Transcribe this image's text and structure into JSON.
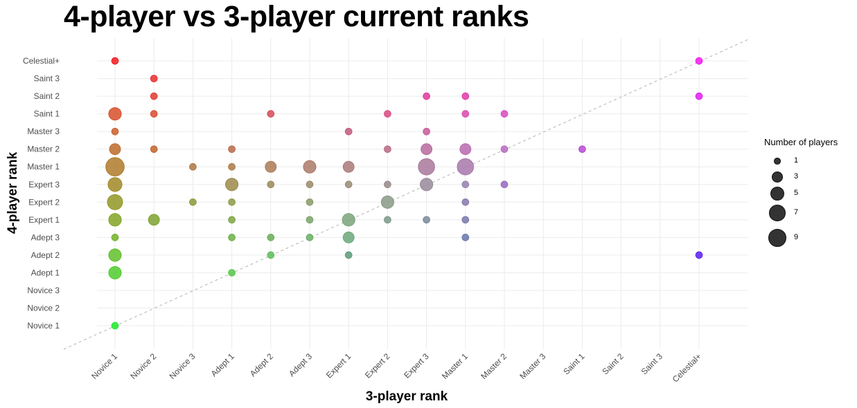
{
  "title": "4-player vs 3-player current ranks",
  "chart_data": {
    "type": "scatter",
    "title": "4-player vs 3-player current ranks",
    "xlabel": "3-player rank",
    "ylabel": "4-player rank",
    "x_categories": [
      "Novice 1",
      "Novice 2",
      "Novice 3",
      "Adept 1",
      "Adept 2",
      "Adept 3",
      "Expert 1",
      "Expert 2",
      "Expert 3",
      "Master 1",
      "Master 2",
      "Master 3",
      "Saint 1",
      "Saint 2",
      "Saint 3",
      "Celestial+"
    ],
    "y_categories": [
      "Novice 1",
      "Novice 2",
      "Novice 3",
      "Adept 1",
      "Adept 2",
      "Adept 3",
      "Expert 1",
      "Expert 2",
      "Expert 3",
      "Master 1",
      "Master 2",
      "Master 3",
      "Saint 1",
      "Saint 2",
      "Saint 3",
      "Celestial+"
    ],
    "size_legend": {
      "title": "Number of players",
      "values": [
        1,
        3,
        5,
        7,
        9
      ]
    },
    "reference_line": "y = x (dashed diagonal)",
    "grid": true,
    "legend_position": "right",
    "points": [
      {
        "x": "Novice 1",
        "y": "Celestial+",
        "n": 1,
        "color": "#f5191e"
      },
      {
        "x": "Novice 1",
        "y": "Saint 1",
        "n": 4,
        "color": "#d7502b"
      },
      {
        "x": "Novice 1",
        "y": "Master 3",
        "n": 1,
        "color": "#c95f2c"
      },
      {
        "x": "Novice 1",
        "y": "Master 2",
        "n": 3,
        "color": "#bd6b2c"
      },
      {
        "x": "Novice 1",
        "y": "Master 1",
        "n": 9,
        "color": "#af7a2a"
      },
      {
        "x": "Novice 1",
        "y": "Expert 3",
        "n": 5,
        "color": "#a18a27"
      },
      {
        "x": "Novice 1",
        "y": "Expert 2",
        "n": 6,
        "color": "#929826"
      },
      {
        "x": "Novice 1",
        "y": "Expert 1",
        "n": 4,
        "color": "#82a526"
      },
      {
        "x": "Novice 1",
        "y": "Adept 3",
        "n": 1,
        "color": "#72b228"
      },
      {
        "x": "Novice 1",
        "y": "Adept 2",
        "n": 4,
        "color": "#62bf2a"
      },
      {
        "x": "Novice 1",
        "y": "Adept 1",
        "n": 4,
        "color": "#4fcc2c"
      },
      {
        "x": "Novice 1",
        "y": "Novice 1",
        "n": 1,
        "color": "#1ee82a"
      },
      {
        "x": "Novice 2",
        "y": "Saint 3",
        "n": 1,
        "color": "#ea2d2d"
      },
      {
        "x": "Novice 2",
        "y": "Saint 2",
        "n": 1,
        "color": "#e23a2e"
      },
      {
        "x": "Novice 2",
        "y": "Saint 1",
        "n": 1,
        "color": "#d94b30"
      },
      {
        "x": "Novice 2",
        "y": "Master 2",
        "n": 1,
        "color": "#c0662d"
      },
      {
        "x": "Novice 2",
        "y": "Expert 1",
        "n": 3,
        "color": "#7ea230"
      },
      {
        "x": "Novice 3",
        "y": "Master 1",
        "n": 1,
        "color": "#ad7940"
      },
      {
        "x": "Novice 3",
        "y": "Expert 2",
        "n": 1,
        "color": "#8a9a3c"
      },
      {
        "x": "Adept 1",
        "y": "Master 2",
        "n": 1,
        "color": "#b86a4a"
      },
      {
        "x": "Adept 1",
        "y": "Master 1",
        "n": 1,
        "color": "#ac7a46"
      },
      {
        "x": "Adept 1",
        "y": "Expert 3",
        "n": 4,
        "color": "#9c8a4a"
      },
      {
        "x": "Adept 1",
        "y": "Expert 2",
        "n": 1,
        "color": "#8c9a48"
      },
      {
        "x": "Adept 1",
        "y": "Expert 1",
        "n": 1,
        "color": "#7ea445"
      },
      {
        "x": "Adept 1",
        "y": "Adept 3",
        "n": 1,
        "color": "#6cb045"
      },
      {
        "x": "Adept 1",
        "y": "Adept 1",
        "n": 1,
        "color": "#55c84a"
      },
      {
        "x": "Adept 2",
        "y": "Saint 1",
        "n": 1,
        "color": "#d64a5a"
      },
      {
        "x": "Adept 2",
        "y": "Master 1",
        "n": 3,
        "color": "#ac7a58"
      },
      {
        "x": "Adept 2",
        "y": "Expert 3",
        "n": 1,
        "color": "#9c8a5a"
      },
      {
        "x": "Adept 2",
        "y": "Adept 3",
        "n": 1,
        "color": "#6aae55"
      },
      {
        "x": "Adept 2",
        "y": "Adept 2",
        "n": 1,
        "color": "#5cbc58"
      },
      {
        "x": "Adept 3",
        "y": "Master 1",
        "n": 4,
        "color": "#aa7a6a"
      },
      {
        "x": "Adept 3",
        "y": "Expert 3",
        "n": 1,
        "color": "#9a8a6a"
      },
      {
        "x": "Adept 3",
        "y": "Expert 2",
        "n": 1,
        "color": "#8a9a68"
      },
      {
        "x": "Adept 3",
        "y": "Expert 1",
        "n": 1,
        "color": "#7aa46a"
      },
      {
        "x": "Adept 3",
        "y": "Adept 3",
        "n": 1,
        "color": "#6ab065"
      },
      {
        "x": "Expert 1",
        "y": "Master 3",
        "n": 1,
        "color": "#c25a7a"
      },
      {
        "x": "Expert 1",
        "y": "Master 1",
        "n": 3,
        "color": "#aa7a7a"
      },
      {
        "x": "Expert 1",
        "y": "Expert 3",
        "n": 1,
        "color": "#9a8a78"
      },
      {
        "x": "Expert 1",
        "y": "Expert 1",
        "n": 4,
        "color": "#7aa47a"
      },
      {
        "x": "Expert 1",
        "y": "Adept 3",
        "n": 3,
        "color": "#6aa87a"
      },
      {
        "x": "Expert 1",
        "y": "Adept 2",
        "n": 1,
        "color": "#5a9a78"
      },
      {
        "x": "Expert 2",
        "y": "Saint 1",
        "n": 1,
        "color": "#d84a80"
      },
      {
        "x": "Expert 2",
        "y": "Master 2",
        "n": 1,
        "color": "#b86a86"
      },
      {
        "x": "Expert 2",
        "y": "Expert 3",
        "n": 1,
        "color": "#988a88"
      },
      {
        "x": "Expert 2",
        "y": "Expert 2",
        "n": 4,
        "color": "#889a86"
      },
      {
        "x": "Expert 2",
        "y": "Expert 1",
        "n": 1,
        "color": "#7a9a88"
      },
      {
        "x": "Expert 3",
        "y": "Saint 2",
        "n": 1,
        "color": "#e03a98"
      },
      {
        "x": "Expert 3",
        "y": "Master 3",
        "n": 1,
        "color": "#c85a98"
      },
      {
        "x": "Expert 3",
        "y": "Master 2",
        "n": 3,
        "color": "#b86a9e"
      },
      {
        "x": "Expert 3",
        "y": "Master 1",
        "n": 7,
        "color": "#a8789a"
      },
      {
        "x": "Expert 3",
        "y": "Expert 3",
        "n": 4,
        "color": "#98889a"
      },
      {
        "x": "Expert 3",
        "y": "Expert 1",
        "n": 1,
        "color": "#7a8a9a"
      },
      {
        "x": "Master 1",
        "y": "Saint 2",
        "n": 1,
        "color": "#e03aa8"
      },
      {
        "x": "Master 1",
        "y": "Saint 1",
        "n": 1,
        "color": "#d84aae"
      },
      {
        "x": "Master 1",
        "y": "Master 2",
        "n": 3,
        "color": "#b86aae"
      },
      {
        "x": "Master 1",
        "y": "Master 1",
        "n": 7,
        "color": "#a878ac"
      },
      {
        "x": "Master 1",
        "y": "Expert 3",
        "n": 1,
        "color": "#9880ac"
      },
      {
        "x": "Master 1",
        "y": "Expert 2",
        "n": 1,
        "color": "#8878ac"
      },
      {
        "x": "Master 1",
        "y": "Expert 1",
        "n": 1,
        "color": "#7878ac"
      },
      {
        "x": "Master 1",
        "y": "Adept 3",
        "n": 1,
        "color": "#6878ac"
      },
      {
        "x": "Master 2",
        "y": "Saint 1",
        "n": 1,
        "color": "#d84ac0"
      },
      {
        "x": "Master 2",
        "y": "Master 2",
        "n": 1,
        "color": "#b86ac0"
      },
      {
        "x": "Master 2",
        "y": "Expert 3",
        "n": 1,
        "color": "#9868c0"
      },
      {
        "x": "Saint 1",
        "y": "Master 2",
        "n": 1,
        "color": "#b84ad4"
      },
      {
        "x": "Celestial+",
        "y": "Celestial+",
        "n": 1,
        "color": "#f519f0"
      },
      {
        "x": "Celestial+",
        "y": "Saint 2",
        "n": 1,
        "color": "#e11ef0"
      },
      {
        "x": "Celestial+",
        "y": "Adept 2",
        "n": 1,
        "color": "#5a1ef5"
      }
    ]
  }
}
